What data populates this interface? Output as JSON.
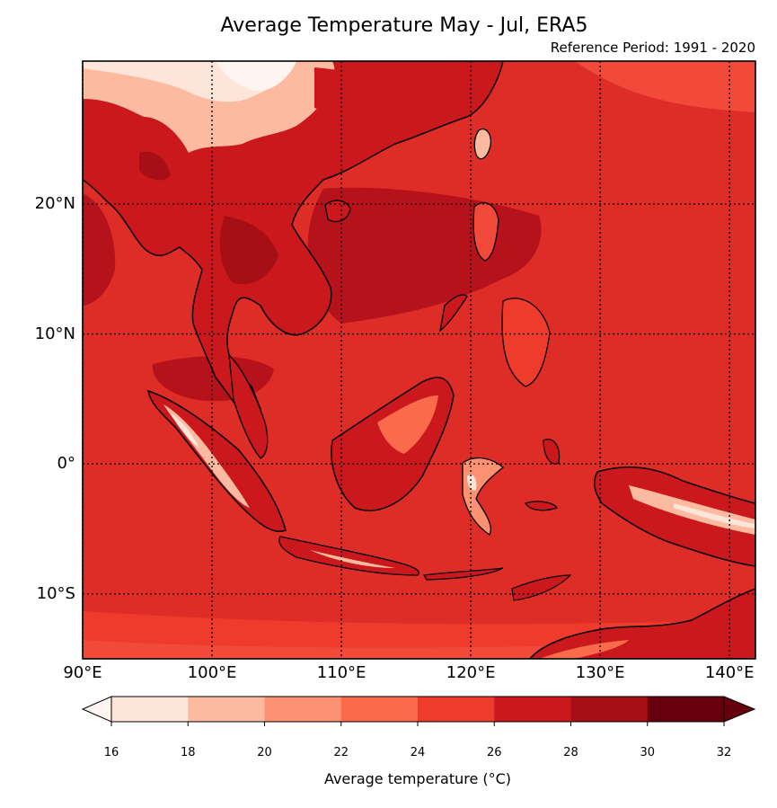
{
  "title": "Average Temperature May - Jul, ERA5",
  "subtitle": "Reference Period: 1991 - 2020",
  "map": {
    "lon_range": [
      90,
      142
    ],
    "lat_range": [
      -15,
      31
    ],
    "grid": "dotted",
    "lat_ticks": [
      {
        "value": 20,
        "label": "20°N"
      },
      {
        "value": 10,
        "label": "10°N"
      },
      {
        "value": 0,
        "label": "0°"
      },
      {
        "value": -10,
        "label": "10°S"
      }
    ],
    "lon_ticks": [
      {
        "value": 90,
        "label": "90°E"
      },
      {
        "value": 100,
        "label": "100°E"
      },
      {
        "value": 110,
        "label": "110°E"
      },
      {
        "value": 120,
        "label": "120°E"
      },
      {
        "value": 130,
        "label": "130°E"
      },
      {
        "value": 140,
        "label": "140°E"
      }
    ]
  },
  "colorbar": {
    "label": "Average temperature (°C)",
    "extend": "both",
    "ticks": [
      "16",
      "18",
      "20",
      "22",
      "24",
      "26",
      "28",
      "30",
      "32"
    ],
    "colors": [
      "#fee5d9",
      "#fcbba1",
      "#fc9272",
      "#fb6a4a",
      "#ef3b2c",
      "#cb181d",
      "#a50f15",
      "#67000d"
    ],
    "under_color": "#fff5f0",
    "over_color": "#67000d"
  },
  "colors": {
    "ocean_base": "#de2d26",
    "warm_sea": "#b5121b",
    "cool_sea": "#f14a3a",
    "land_mid": "#e6372c",
    "highland": "#fcbba1",
    "mountain_cold": "#fee5d9"
  }
}
